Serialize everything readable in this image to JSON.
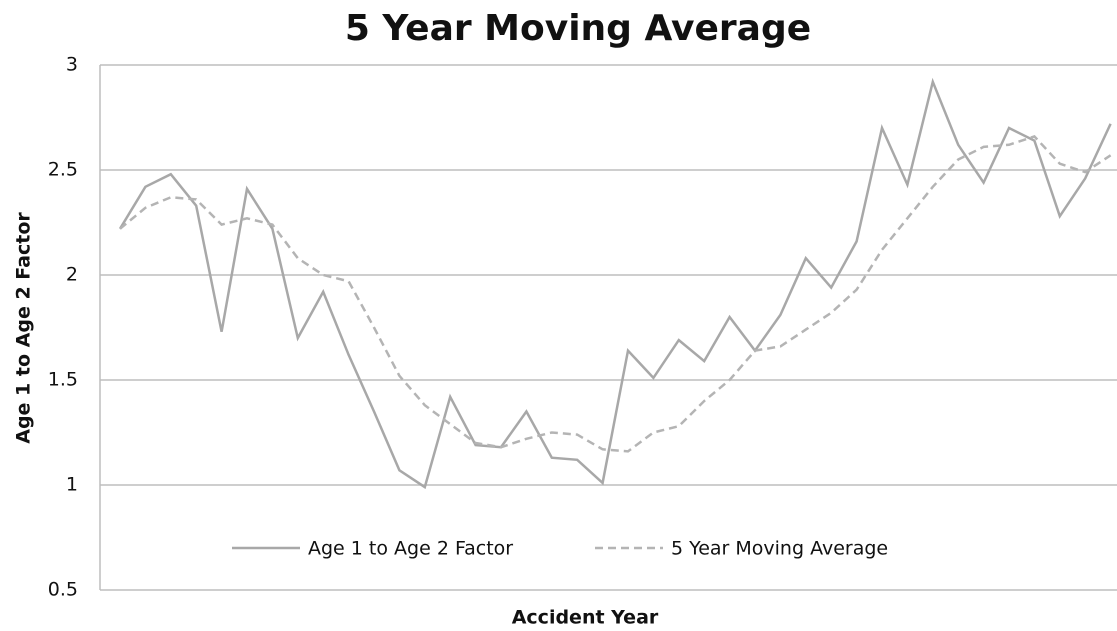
{
  "chart_data": {
    "type": "line",
    "title": "5 Year Moving Average",
    "y_label": "Age 1 to Age 2 Factor",
    "x_label": "Accident Year",
    "categories": [
      null,
      null,
      null,
      null,
      null,
      null,
      null,
      null,
      null,
      null,
      null,
      null,
      null,
      null,
      null,
      null,
      null,
      null,
      null,
      null,
      null,
      null,
      null,
      null,
      null,
      null,
      null,
      null,
      null,
      null,
      null,
      null,
      null,
      null,
      null,
      null,
      null,
      null,
      null,
      null
    ],
    "series": [
      {
        "name": "Age 1 to Age 2 Factor",
        "color": "#a8a8a8",
        "dash": false,
        "values": [
          2.22,
          2.42,
          2.48,
          2.33,
          1.73,
          2.41,
          2.22,
          1.7,
          1.92,
          1.62,
          1.35,
          1.07,
          0.99,
          1.42,
          1.19,
          1.18,
          1.35,
          1.13,
          1.12,
          1.01,
          1.64,
          1.51,
          1.69,
          1.59,
          1.8,
          1.64,
          1.81,
          2.08,
          1.94,
          2.16,
          2.7,
          2.43,
          2.92,
          2.62,
          2.44,
          2.7,
          2.64,
          2.28,
          2.46,
          2.72
        ]
      },
      {
        "name": "5 Year Moving Average",
        "color": "#b4b4b4",
        "dash": true,
        "values": [
          2.22,
          2.32,
          2.37,
          2.36,
          2.24,
          2.27,
          2.24,
          2.08,
          2.0,
          1.97,
          1.75,
          1.52,
          1.38,
          1.29,
          1.2,
          1.18,
          1.22,
          1.25,
          1.24,
          1.17,
          1.16,
          1.25,
          1.28,
          1.4,
          1.5,
          1.64,
          1.66,
          1.74,
          1.82,
          1.93,
          2.12,
          2.27,
          2.42,
          2.55,
          2.61,
          2.62,
          2.66,
          2.53,
          2.49,
          2.57
        ]
      }
    ],
    "ylim": [
      0.5,
      3
    ],
    "yticks": [
      0.5,
      1,
      1.5,
      2,
      2.5,
      3
    ],
    "grid": true,
    "legend": "bottom"
  }
}
